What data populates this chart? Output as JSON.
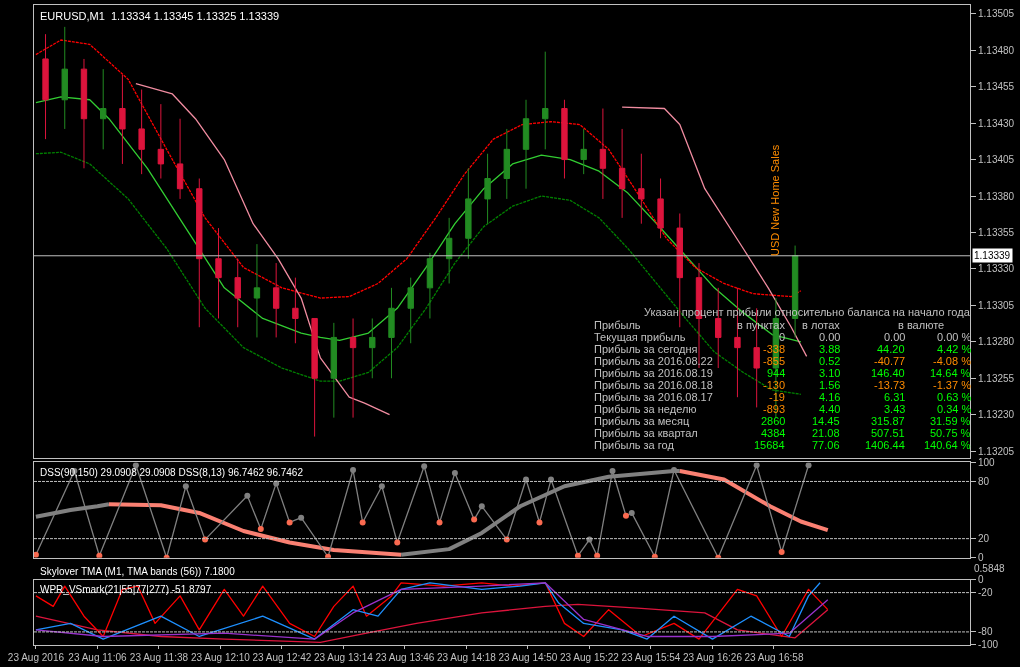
{
  "chart_data": [
    {
      "type": "candlestick",
      "title": "EURUSD,M1  1.13334 1.13345 1.13325 1.13339",
      "tick_labels": "y",
      "x": [
        "2016-08-23T10:39",
        "2016-08-23T10:49",
        "2016-08-23T10:59",
        "2016-08-23T11:09",
        "2016-08-23T11:19",
        "2016-08-23T11:29",
        "2016-08-23T11:39",
        "2016-08-23T11:49",
        "2016-08-23T11:59",
        "2016-08-23T12:09",
        "2016-08-23T12:19",
        "2016-08-23T12:29",
        "2016-08-23T12:39",
        "2016-08-23T12:49",
        "2016-08-23T12:59",
        "2016-08-23T13:09",
        "2016-08-23T13:19",
        "2016-08-23T13:29",
        "2016-08-23T13:39",
        "2016-08-23T13:49",
        "2016-08-23T13:59",
        "2016-08-23T14:09",
        "2016-08-23T14:19",
        "2016-08-23T14:29",
        "2016-08-23T14:39",
        "2016-08-23T14:49",
        "2016-08-23T14:59",
        "2016-08-23T15:09",
        "2016-08-23T15:19",
        "2016-08-23T15:29",
        "2016-08-23T15:39",
        "2016-08-23T15:49",
        "2016-08-23T15:59",
        "2016-08-23T16:09",
        "2016-08-23T16:19",
        "2016-08-23T16:29",
        "2016-08-23T16:39",
        "2016-08-23T16:49",
        "2016-08-23T16:59",
        "2016-08-23T17:09"
      ],
      "ohlc": [
        [
          1.13474,
          1.13491,
          1.13419,
          1.13446
        ],
        [
          1.13446,
          1.13496,
          1.13426,
          1.13467
        ],
        [
          1.13467,
          1.13474,
          1.13399,
          1.13433
        ],
        [
          1.13433,
          1.13467,
          1.13412,
          1.1344
        ],
        [
          1.1344,
          1.13463,
          1.13402,
          1.13426
        ],
        [
          1.13426,
          1.13453,
          1.13395,
          1.13412
        ],
        [
          1.13412,
          1.13443,
          1.13392,
          1.13402
        ],
        [
          1.13402,
          1.13433,
          1.13378,
          1.13385
        ],
        [
          1.13385,
          1.13392,
          1.1329,
          1.13337
        ],
        [
          1.13337,
          1.13358,
          1.13296,
          1.13324
        ],
        [
          1.13324,
          1.13337,
          1.1329,
          1.1331
        ],
        [
          1.1331,
          1.13347,
          1.13283,
          1.13317
        ],
        [
          1.13317,
          1.13334,
          1.13283,
          1.13303
        ],
        [
          1.13303,
          1.13324,
          1.13279,
          1.13296
        ],
        [
          1.13296,
          1.13296,
          1.13215,
          1.13255
        ],
        [
          1.13255,
          1.13293,
          1.13228,
          1.13283
        ],
        [
          1.13283,
          1.13296,
          1.13228,
          1.13276
        ],
        [
          1.13276,
          1.13296,
          1.13255,
          1.13283
        ],
        [
          1.13283,
          1.13317,
          1.13255,
          1.13303
        ],
        [
          1.13303,
          1.13324,
          1.13279,
          1.13317
        ],
        [
          1.13317,
          1.13341,
          1.13296,
          1.13337
        ],
        [
          1.13337,
          1.13365,
          1.1332,
          1.13351
        ],
        [
          1.13351,
          1.13399,
          1.13337,
          1.13378
        ],
        [
          1.13378,
          1.13409,
          1.13361,
          1.13392
        ],
        [
          1.13392,
          1.13426,
          1.13378,
          1.13412
        ],
        [
          1.13412,
          1.13446,
          1.13385,
          1.13433
        ],
        [
          1.13433,
          1.13479,
          1.13412,
          1.1344
        ],
        [
          1.1344,
          1.13446,
          1.13392,
          1.13405
        ],
        [
          1.13405,
          1.13426,
          1.13395,
          1.13412
        ],
        [
          1.13412,
          1.1344,
          1.13378,
          1.13399
        ],
        [
          1.13399,
          1.13426,
          1.13365,
          1.13385
        ],
        [
          1.13385,
          1.13409,
          1.13361,
          1.13378
        ],
        [
          1.13378,
          1.13392,
          1.13351,
          1.13358
        ],
        [
          1.13358,
          1.13368,
          1.1329,
          1.13324
        ],
        [
          1.13324,
          1.13334,
          1.13262,
          1.13296
        ],
        [
          1.13296,
          1.13317,
          1.13262,
          1.13283
        ],
        [
          1.13283,
          1.13317,
          1.13242,
          1.13276
        ],
        [
          1.13276,
          1.13303,
          1.13235,
          1.13262
        ],
        [
          1.13262,
          1.1331,
          1.13228,
          1.13296
        ],
        [
          1.13296,
          1.13346,
          1.13283,
          1.13339
        ]
      ],
      "series": [
        {
          "type": "line",
          "color": "#32cd32",
          "x": [
            "2016-08-23T10:34",
            "2016-08-23T10:47",
            "2016-08-23T11:02",
            "2016-08-23T11:12",
            "2016-08-23T11:32",
            "2016-08-23T11:52",
            "2016-08-23T12:12",
            "2016-08-23T12:32",
            "2016-08-23T12:52",
            "2016-08-23T13:02",
            "2016-08-23T13:12",
            "2016-08-23T13:27",
            "2016-08-23T13:42",
            "2016-08-23T13:57",
            "2016-08-23T14:12",
            "2016-08-23T14:27",
            "2016-08-23T14:42",
            "2016-08-23T14:57",
            "2016-08-23T15:12",
            "2016-08-23T15:27",
            "2016-08-23T15:42",
            "2016-08-23T15:57",
            "2016-08-23T16:12",
            "2016-08-23T16:27",
            "2016-08-23T16:42",
            "2016-08-23T16:57",
            "2016-08-23T17:12"
          ],
          "values": [
            1.13444,
            1.13448,
            1.13446,
            1.13433,
            1.13399,
            1.13358,
            1.13317,
            1.13296,
            1.13286,
            1.13283,
            1.13281,
            1.13286,
            1.13303,
            1.13331,
            1.13361,
            1.13385,
            1.13402,
            1.13408,
            1.13405,
            1.13397,
            1.13382,
            1.13361,
            1.13339,
            1.13317,
            1.133,
            1.13285,
            1.1328
          ]
        },
        {
          "type": "line",
          "color": "#ff0000",
          "line_style": "dashed",
          "x": [
            "2016-08-23T10:34",
            "2016-08-23T10:47",
            "2016-08-23T11:02",
            "2016-08-23T11:22",
            "2016-08-23T11:42",
            "2016-08-23T12:02",
            "2016-08-23T12:22",
            "2016-08-23T12:42",
            "2016-08-23T13:02",
            "2016-08-23T13:17",
            "2016-08-23T13:32",
            "2016-08-23T13:47",
            "2016-08-23T14:02",
            "2016-08-23T14:17",
            "2016-08-23T14:32",
            "2016-08-23T14:47",
            "2016-08-23T15:02",
            "2016-08-23T15:17",
            "2016-08-23T15:32",
            "2016-08-23T15:47",
            "2016-08-23T16:02",
            "2016-08-23T16:17",
            "2016-08-23T16:32",
            "2016-08-23T16:47",
            "2016-08-23T17:07",
            "2016-08-23T17:12"
          ],
          "values": [
            1.13477,
            1.13487,
            1.13484,
            1.1346,
            1.13412,
            1.13365,
            1.13331,
            1.13317,
            1.1331,
            1.13311,
            1.1332,
            1.13337,
            1.13365,
            1.13395,
            1.13419,
            1.13429,
            1.13431,
            1.13429,
            1.13412,
            1.13382,
            1.13351,
            1.13331,
            1.1332,
            1.13313,
            1.13311,
            1.13315
          ]
        },
        {
          "type": "line",
          "color": "#008000",
          "line_style": "dashed",
          "x": [
            "2016-08-23T10:34",
            "2016-08-23T10:47",
            "2016-08-23T11:02",
            "2016-08-23T11:22",
            "2016-08-23T11:42",
            "2016-08-23T12:02",
            "2016-08-23T12:22",
            "2016-08-23T12:42",
            "2016-08-23T13:02",
            "2016-08-23T13:12",
            "2016-08-23T13:27",
            "2016-08-23T13:42",
            "2016-08-23T13:57",
            "2016-08-23T14:12",
            "2016-08-23T14:27",
            "2016-08-23T14:42",
            "2016-08-23T14:57",
            "2016-08-23T15:12",
            "2016-08-23T15:27",
            "2016-08-23T15:42",
            "2016-08-23T15:57",
            "2016-08-23T16:12",
            "2016-08-23T16:27",
            "2016-08-23T16:42",
            "2016-08-23T16:57",
            "2016-08-23T17:12"
          ],
          "values": [
            1.13409,
            1.1341,
            1.13402,
            1.13378,
            1.13344,
            1.13303,
            1.13276,
            1.13262,
            1.13253,
            1.13253,
            1.13259,
            1.13276,
            1.13303,
            1.13334,
            1.13359,
            1.13373,
            1.1338,
            1.13377,
            1.13365,
            1.13344,
            1.1332,
            1.13296,
            1.13273,
            1.13259,
            1.13247,
            1.13244
          ]
        },
        {
          "type": "line",
          "color": "#f08ca0",
          "x": [
            "2016-08-23T11:26",
            "2016-08-23T11:45",
            "2016-08-23T11:57",
            "2016-08-23T12:12",
            "2016-08-23T12:27",
            "2016-08-23T12:40",
            "2016-08-23T12:52",
            "2016-08-23T13:02",
            "2016-08-23T13:17",
            "2016-08-23T13:25",
            "2016-08-23T13:38"
          ],
          "values": [
            1.13457,
            1.1345,
            1.13433,
            1.13405,
            1.13361,
            1.13337,
            1.1331,
            1.13269,
            1.13242,
            1.13238,
            1.1323
          ]
        },
        {
          "type": "line",
          "color": "#f08ca0",
          "x": [
            "2016-08-23T15:39",
            "2016-08-23T16:01",
            "2016-08-23T16:09",
            "2016-08-23T16:22",
            "2016-08-23T16:42",
            "2016-08-23T16:55",
            "2016-08-23T17:07",
            "2016-08-23T17:15"
          ],
          "values": [
            1.13441,
            1.1344,
            1.13429,
            1.13385,
            1.13344,
            1.13317,
            1.1329,
            1.1327
          ]
        }
      ],
      "ref_lines": [
        {
          "axis": "y",
          "value": 1.13339,
          "label": "1.13339",
          "color": "#c0c0c0"
        }
      ],
      "xlim": [
        "2016-08-23T10:33",
        "2016-08-23T18:40"
      ],
      "ylim": [
        1.132,
        1.13511
      ],
      "yticks": [
        {
          "value": 1.13205,
          "label": "1.13205"
        },
        {
          "value": 1.1323,
          "label": "1.13230"
        },
        {
          "value": 1.13255,
          "label": "1.13255"
        },
        {
          "value": 1.1328,
          "label": "1.13280"
        },
        {
          "value": 1.13305,
          "label": "1.13305"
        },
        {
          "value": 1.1333,
          "label": "1.13330"
        },
        {
          "value": 1.13355,
          "label": "1.13355"
        },
        {
          "value": 1.1338,
          "label": "1.13380"
        },
        {
          "value": 1.13405,
          "label": "1.13405"
        },
        {
          "value": 1.1343,
          "label": "1.13430"
        },
        {
          "value": 1.13455,
          "label": "1.13455"
        },
        {
          "value": 1.1348,
          "label": "1.13480"
        },
        {
          "value": 1.13505,
          "label": "1.13505"
        }
      ],
      "annotations": [
        "Указан процент прибыли относительно баланса на начало года",
        "Прибыль",
        "в пунктах",
        "в лотах",
        "в валюте",
        "Текущая прибыль",
        "0",
        "0.00",
        "0.00",
        "0.00 %",
        "Прибыль за сегодня",
        "-338",
        "3.88",
        "44.20",
        "4.42 %",
        "Прибыль за 2016.08.22",
        "-855",
        "0.52",
        "-40.77",
        "-4.08 %",
        "Прибыль за 2016.08.19",
        "944",
        "3.10",
        "146.40",
        "14.64 %",
        "Прибыль за 2016.08.18",
        "-130",
        "1.56",
        "-13.73",
        "-1.37 %",
        "Прибыль за 2016.08.17",
        "-19",
        "4.16",
        "6.31",
        "0.63 %",
        "Прибыль за неделю",
        "-893",
        "4.40",
        "3.43",
        "0.34 %",
        "Прибыль за месяц",
        "2860",
        "14.45",
        "315.87",
        "31.59 %",
        "Прибыль за квартал",
        "4384",
        "21.08",
        "507.51",
        "50.75 %",
        "Прибыль за год",
        "15684",
        "77.06",
        "1406.44",
        "140.64 %",
        "USD New Home Sales"
      ]
    },
    {
      "type": "line",
      "title": "DSS(90,150) 29.0908 29.0908 DSS(8,13) 96.7462 96.7462",
      "tick_labels": "y",
      "series": [
        {
          "color": "#808080",
          "x": [
            "2016-08-23T10:34",
            "2016-08-23T10:52",
            "2016-08-23T11:06",
            "2016-08-23T11:12"
          ],
          "values": [
            43,
            50,
            54,
            56
          ]
        },
        {
          "color": "#fa8072",
          "x": [
            "2016-08-23T11:12",
            "2016-08-23T11:39",
            "2016-08-23T11:59",
            "2016-08-23T12:22",
            "2016-08-23T12:46",
            "2016-08-23T13:09",
            "2016-08-23T13:44"
          ],
          "values": [
            56,
            55,
            47,
            28,
            16,
            8,
            3
          ]
        },
        {
          "color": "#808080",
          "x": [
            "2016-08-23T13:44",
            "2016-08-23T14:09",
            "2016-08-23T14:26",
            "2016-08-23T14:46",
            "2016-08-23T15:09",
            "2016-08-23T15:32",
            "2016-08-23T16:06",
            "2016-08-23T16:09"
          ],
          "values": [
            3,
            9,
            26,
            54,
            75,
            85,
            91,
            91
          ]
        },
        {
          "color": "#fa8072",
          "x": [
            "2016-08-23T16:09",
            "2016-08-23T16:32",
            "2016-08-23T16:56",
            "2016-08-23T17:12",
            "2016-08-23T17:26"
          ],
          "values": [
            91,
            82,
            54,
            38,
            29
          ]
        },
        {
          "color": "#808080",
          "marker": "circle",
          "x": [
            "2016-08-23T10:34",
            "2016-08-23T10:54",
            "2016-08-23T11:07",
            "2016-08-23T11:26",
            "2016-08-23T11:42",
            "2016-08-23T11:52",
            "2016-08-23T12:02",
            "2016-08-23T12:24",
            "2016-08-23T12:31",
            "2016-08-23T12:39",
            "2016-08-23T12:46",
            "2016-08-23T12:52",
            "2016-08-23T13:06",
            "2016-08-23T13:19",
            "2016-08-23T13:24",
            "2016-08-23T13:34",
            "2016-08-23T13:42",
            "2016-08-23T13:56",
            "2016-08-23T14:04",
            "2016-08-23T14:12",
            "2016-08-23T14:22",
            "2016-08-23T14:26",
            "2016-08-23T14:39",
            "2016-08-23T14:49",
            "2016-08-23T14:56",
            "2016-08-23T15:02",
            "2016-08-23T15:16",
            "2016-08-23T15:22",
            "2016-08-23T15:26",
            "2016-08-23T15:34",
            "2016-08-23T15:41",
            "2016-08-23T15:44",
            "2016-08-23T15:56",
            "2016-08-23T16:06",
            "2016-08-23T16:29",
            "2016-08-23T16:49",
            "2016-08-23T17:02",
            "2016-08-23T17:16"
          ],
          "values": [
            3,
            91,
            2,
            97,
            0,
            75,
            19,
            65,
            30,
            78,
            37,
            42,
            1,
            92,
            37,
            75,
            16,
            96,
            37,
            89,
            40,
            54,
            19,
            82,
            37,
            82,
            2,
            19,
            2,
            91,
            44,
            47,
            1,
            92,
            0,
            97,
            6,
            97
          ],
          "colors": [
            "#fa6a50",
            "#808080",
            "#fa6a50",
            "#808080",
            "#fa6a50",
            "#808080",
            "#fa6a50",
            "#808080",
            "#fa6a50",
            "#808080",
            "#fa6a50",
            "#808080",
            "#fa6a50",
            "#808080",
            "#fa6a50",
            "#808080",
            "#fa6a50",
            "#808080",
            "#fa6a50",
            "#808080",
            "#fa6a50",
            "#808080",
            "#fa6a50",
            "#808080",
            "#fa6a50",
            "#808080",
            "#fa6a50",
            "#808080",
            "#fa6a50",
            "#808080",
            "#fa6a50",
            "#808080",
            "#fa6a50",
            "#808080",
            "#fa6a50",
            "#808080",
            "#fa6a50",
            "#808080"
          ]
        }
      ],
      "ref_lines": [
        {
          "axis": "y",
          "value": 20,
          "color": "#c0c0c0",
          "line_style": "dashed"
        },
        {
          "axis": "y",
          "value": 80,
          "color": "#c0c0c0",
          "line_style": "dashed"
        }
      ],
      "xlim": [
        "2016-08-23T10:33",
        "2016-08-23T18:40"
      ],
      "ylim": [
        0,
        100
      ],
      "yticks": [
        0,
        20,
        80,
        100
      ]
    },
    {
      "type": "other",
      "title": "Skylover TMA (M1, TMA bands (56)) 7.1800",
      "annotations": [
        "0.5848"
      ]
    },
    {
      "type": "line",
      "title": "WPR_VSmark(21|55|77|277) -51.8797",
      "series": [
        {
          "color": "#dc143c",
          "x": [
            "2016-08-23T10:34",
            "2016-08-23T11:06",
            "2016-08-23T11:39",
            "2016-08-23T12:12",
            "2016-08-23T13:02",
            "2016-08-23T13:26",
            "2016-08-23T13:52",
            "2016-08-23T14:26",
            "2016-08-23T14:59",
            "2016-08-23T15:16",
            "2016-08-23T15:49",
            "2016-08-23T16:22",
            "2016-08-23T16:39",
            "2016-08-23T17:09",
            "2016-08-23T17:26"
          ],
          "values": [
            -56,
            -77,
            -87,
            -91,
            -96,
            -82,
            -67,
            -51,
            -41,
            -38,
            -44,
            -51,
            -77,
            -89,
            -46
          ]
        },
        {
          "color": "#ff0000",
          "x": [
            "2016-08-23T10:34",
            "2016-08-23T10:43",
            "2016-08-23T10:49",
            "2016-08-23T10:59",
            "2016-08-23T11:09",
            "2016-08-23T11:19",
            "2016-08-23T11:27",
            "2016-08-23T11:36",
            "2016-08-23T11:49",
            "2016-08-23T11:59",
            "2016-08-23T12:12",
            "2016-08-23T12:22",
            "2016-08-23T12:32",
            "2016-08-23T12:46",
            "2016-08-23T12:59",
            "2016-08-23T13:09",
            "2016-08-23T13:19",
            "2016-08-23T13:26",
            "2016-08-23T13:39",
            "2016-08-23T13:44",
            "2016-08-23T14:06",
            "2016-08-23T14:26",
            "2016-08-23T14:42",
            "2016-08-23T14:59",
            "2016-08-23T15:09",
            "2016-08-23T15:19",
            "2016-08-23T15:32",
            "2016-08-23T15:49",
            "2016-08-23T16:06",
            "2016-08-23T16:19",
            "2016-08-23T16:39",
            "2016-08-23T16:49",
            "2016-08-23T17:02",
            "2016-08-23T17:16",
            "2016-08-23T17:26"
          ],
          "values": [
            -25,
            -41,
            -10,
            -56,
            -87,
            -15,
            -10,
            -67,
            -25,
            -77,
            -15,
            -56,
            -10,
            -67,
            -87,
            -41,
            -10,
            -56,
            -25,
            -5,
            -10,
            -5,
            -10,
            -5,
            -67,
            -87,
            -46,
            -87,
            -67,
            -91,
            -15,
            -25,
            -87,
            -15,
            -46
          ]
        },
        {
          "color": "#1e90ff",
          "x": [
            "2016-08-23T10:34",
            "2016-08-23T10:52",
            "2016-08-23T11:09",
            "2016-08-23T11:39",
            "2016-08-23T11:59",
            "2016-08-23T12:32",
            "2016-08-23T12:59",
            "2016-08-23T13:19",
            "2016-08-23T13:32",
            "2016-08-23T13:44",
            "2016-08-23T13:59",
            "2016-08-23T14:26",
            "2016-08-23T14:46",
            "2016-08-23T14:59",
            "2016-08-23T15:06",
            "2016-08-23T15:19",
            "2016-08-23T15:39",
            "2016-08-23T15:52",
            "2016-08-23T16:06",
            "2016-08-23T16:26",
            "2016-08-23T16:46",
            "2016-08-23T17:06",
            "2016-08-23T17:16",
            "2016-08-23T17:22"
          ],
          "values": [
            -77,
            -67,
            -91,
            -56,
            -87,
            -56,
            -91,
            -46,
            -56,
            -15,
            -5,
            -15,
            -10,
            -5,
            -36,
            -67,
            -77,
            -91,
            -56,
            -91,
            -56,
            -87,
            -25,
            -5
          ]
        },
        {
          "color": "#9932cc",
          "x": [
            "2016-08-23T10:34",
            "2016-08-23T11:09",
            "2016-08-23T12:12",
            "2016-08-23T12:59",
            "2016-08-23T13:19",
            "2016-08-23T13:44",
            "2016-08-23T14:26",
            "2016-08-23T14:59",
            "2016-08-23T15:19",
            "2016-08-23T15:52",
            "2016-08-23T16:26",
            "2016-08-23T17:06",
            "2016-08-23T17:26"
          ],
          "values": [
            -77,
            -87,
            -82,
            -91,
            -51,
            -15,
            -10,
            -5,
            -61,
            -87,
            -87,
            -82,
            -31
          ]
        }
      ],
      "ref_lines": [
        {
          "axis": "y",
          "value": -20,
          "color": "#c0c0c0",
          "line_style": "dashed"
        },
        {
          "axis": "y",
          "value": -80,
          "color": "#c0c0c0",
          "line_style": "dashed"
        }
      ],
      "xlim": [
        "2016-08-23T10:33",
        "2016-08-23T18:40"
      ],
      "ylim": [
        -100,
        0
      ],
      "yticks": [
        0,
        -20,
        -80,
        -100
      ],
      "xticks": [
        {
          "value": "2016-08-23T10:34",
          "label": "23 Aug 2016"
        },
        {
          "value": "2016-08-23T11:06",
          "label": "23 Aug 11:06"
        },
        {
          "value": "2016-08-23T11:38",
          "label": "23 Aug 11:38"
        },
        {
          "value": "2016-08-23T12:10",
          "label": "23 Aug 12:10"
        },
        {
          "value": "2016-08-23T12:42",
          "label": "23 Aug 12:42"
        },
        {
          "value": "2016-08-23T13:14",
          "label": "23 Aug 13:14"
        },
        {
          "value": "2016-08-23T13:46",
          "label": "23 Aug 13:46"
        },
        {
          "value": "2016-08-23T14:18",
          "label": "23 Aug 14:18"
        },
        {
          "value": "2016-08-23T14:50",
          "label": "23 Aug 14:50"
        },
        {
          "value": "2016-08-23T15:22",
          "label": "23 Aug 15:22"
        },
        {
          "value": "2016-08-23T15:54",
          "label": "23 Aug 15:54"
        },
        {
          "value": "2016-08-23T16:26",
          "label": "23 Aug 16:26"
        },
        {
          "value": "2016-08-23T16:58",
          "label": "23 Aug 16:58"
        }
      ]
    }
  ]
}
